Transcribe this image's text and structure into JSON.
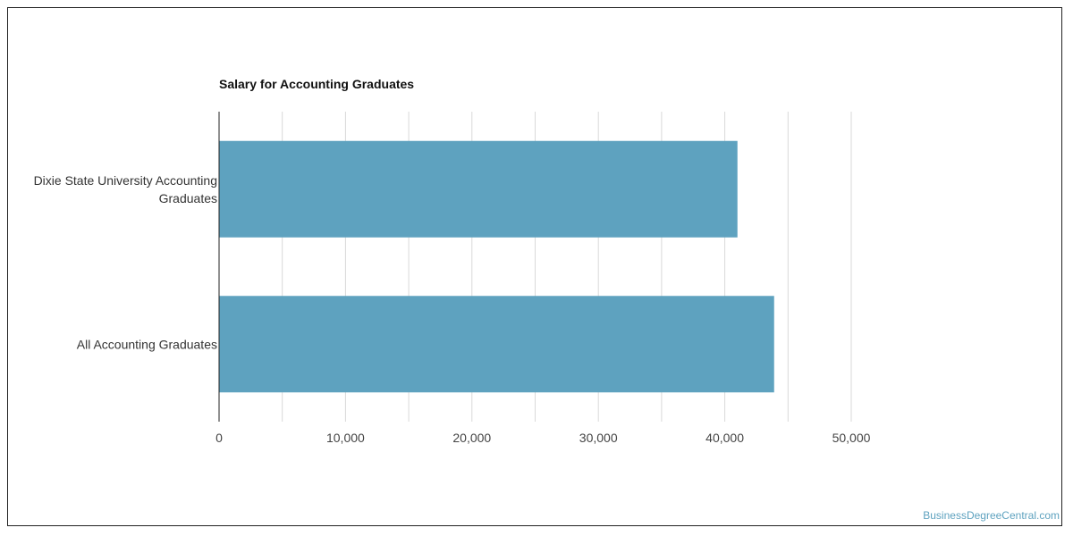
{
  "chart_data": {
    "type": "bar",
    "orientation": "horizontal",
    "title": "Salary for Accounting Graduates",
    "categories": [
      "Dixie State University Accounting Graduates",
      "All Accounting Graduates"
    ],
    "category_lines": [
      [
        "Dixie State University Accounting",
        "Graduates"
      ],
      [
        "All Accounting Graduates"
      ]
    ],
    "values": [
      41000,
      43900
    ],
    "xlim": [
      0,
      50000
    ],
    "xticks": [
      0,
      10000,
      20000,
      30000,
      40000,
      50000
    ],
    "xtick_labels": [
      "0",
      "10,000",
      "20,000",
      "30,000",
      "40,000",
      "50,000"
    ],
    "grid": true,
    "bar_color": "#5ea2bf",
    "xlabel": "",
    "ylabel": ""
  },
  "footer": {
    "credit": "BusinessDegreeCentral.com"
  },
  "colors": {
    "bar": "#5ea2bf",
    "credit": "#5ea2bf",
    "grid": "#d9d9d9",
    "axis": "#222222"
  }
}
